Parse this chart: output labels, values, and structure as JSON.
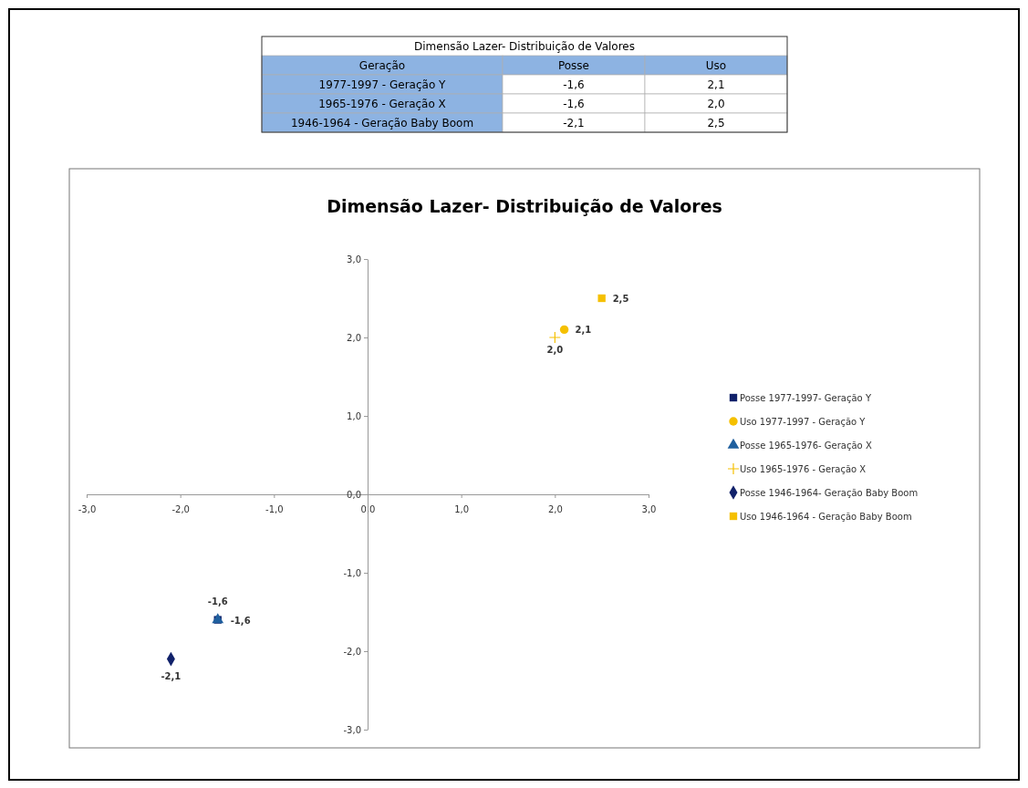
{
  "chart_data": {
    "type": "scatter",
    "title": "Dimensão Lazer- Distribuição de Valores",
    "annotations": [
      "Geração",
      "Posse",
      "Uso",
      "1977-1997 - Geração Y",
      "1965-1976 - Geração X",
      "1946-1964 - Geração Baby Boom"
    ],
    "xlim": [
      -3,
      3
    ],
    "ylim": [
      -3,
      3
    ],
    "xticks": [
      {
        "value": -3,
        "label": "-3,0"
      },
      {
        "value": -2,
        "label": "-2,0"
      },
      {
        "value": -1,
        "label": "-1,0"
      },
      {
        "value": 0,
        "label": "0,0"
      },
      {
        "value": 1,
        "label": "1,0"
      },
      {
        "value": 2,
        "label": "2,0"
      },
      {
        "value": 3,
        "label": "3,0"
      }
    ],
    "yticks": [
      {
        "value": -3,
        "label": "-3,0"
      },
      {
        "value": -2,
        "label": "-2,0"
      },
      {
        "value": -1,
        "label": "-1,0"
      },
      {
        "value": 0,
        "label": "0,0"
      },
      {
        "value": 1,
        "label": "1,0"
      },
      {
        "value": 2,
        "label": "2,0"
      },
      {
        "value": 3,
        "label": "3,0"
      }
    ],
    "grid": false,
    "legend": "right",
    "series": [
      {
        "name": "Posse 1977-1997- Geração Y",
        "color": "#10216a",
        "marker": "square",
        "x": [
          -1.6
        ],
        "values": [
          -1.6
        ],
        "value_labels": [
          "-1,6"
        ]
      },
      {
        "name": "Uso 1977-1997 - Geração Y",
        "color": "#f5c000",
        "marker": "circle",
        "x": [
          2.1
        ],
        "values": [
          2.1
        ],
        "value_labels": [
          "2,1"
        ]
      },
      {
        "name": "Posse 1965-1976- Geração X",
        "color": "#1f5f9e",
        "marker": "triangle",
        "x": [
          -1.6
        ],
        "values": [
          -1.6
        ],
        "value_labels": [
          "-1,6"
        ]
      },
      {
        "name": "Uso 1965-1976 - Geração X",
        "color": "#f5c000",
        "marker": "cross",
        "x": [
          2.0
        ],
        "values": [
          2.0
        ],
        "value_labels": [
          "2,0"
        ]
      },
      {
        "name": "Posse 1946-1964- Geração Baby Boom",
        "color": "#10216a",
        "marker": "diamond",
        "x": [
          -2.1
        ],
        "values": [
          -2.1
        ],
        "value_labels": [
          "-2,1"
        ]
      },
      {
        "name": "Uso 1946-1964 - Geração Baby Boom",
        "color": "#f5c000",
        "marker": "square",
        "x": [
          2.5
        ],
        "values": [
          2.5
        ],
        "value_labels": [
          "2,5"
        ]
      }
    ]
  }
}
